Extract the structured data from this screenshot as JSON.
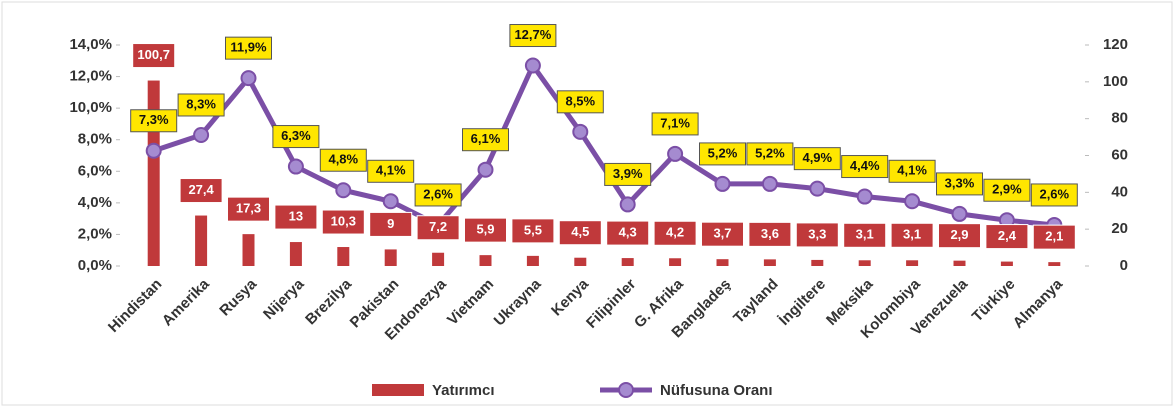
{
  "chart_data": {
    "type": "combo",
    "categories": [
      "Hindistan",
      "Amerika",
      "Rusya",
      "Nijerya",
      "Brezilya",
      "Pakistan",
      "Endonezya",
      "Vietnam",
      "Ukrayna",
      "Kenya",
      "Filipinler",
      "G. Afrika",
      "Bangladeş",
      "Tayland",
      "İngiltere",
      "Meksika",
      "Kolombiya",
      "Venezuela",
      "Türkiye",
      "Almanya"
    ],
    "series": [
      {
        "name": "Yatırımcı",
        "type": "bar",
        "axis": "y2",
        "color": "#c0393b",
        "values": [
          100.7,
          27.4,
          17.3,
          13,
          10.3,
          9,
          7.2,
          5.9,
          5.5,
          4.5,
          4.3,
          4.2,
          3.7,
          3.6,
          3.3,
          3.1,
          3.1,
          2.9,
          2.4,
          2.1
        ],
        "value_labels": [
          "100,7",
          "27,4",
          "17,3",
          "13",
          "10,3",
          "9",
          "7,2",
          "5,9",
          "5,5",
          "4,5",
          "4,3",
          "4,2",
          "3,7",
          "3,6",
          "3,3",
          "3,1",
          "3,1",
          "2,9",
          "2,4",
          "2,1"
        ]
      },
      {
        "name": "Nüfusuna Oranı",
        "type": "line",
        "axis": "y",
        "color": "#7b4fa6",
        "values": [
          7.3,
          8.3,
          11.9,
          6.3,
          4.8,
          4.1,
          2.6,
          6.1,
          12.7,
          8.5,
          3.9,
          7.1,
          5.2,
          5.2,
          4.9,
          4.4,
          4.1,
          3.3,
          2.9,
          2.6
        ],
        "value_labels": [
          "7,3%",
          "8,3%",
          "11,9%",
          "6,3%",
          "4,8%",
          "4,1%",
          "2,6%",
          "6,1%",
          "12,7%",
          "8,5%",
          "3,9%",
          "7,1%",
          "5,2%",
          "5,2%",
          "4,9%",
          "4,4%",
          "4,1%",
          "3,3%",
          "2,9%",
          "2,6%"
        ]
      }
    ],
    "ylim": [
      0,
      14
    ],
    "yticks": [
      {
        "value": 0,
        "label": "0,0%"
      },
      {
        "value": 2,
        "label": "2,0%"
      },
      {
        "value": 4,
        "label": "4,0%"
      },
      {
        "value": 6,
        "label": "6,0%"
      },
      {
        "value": 8,
        "label": "8,0%"
      },
      {
        "value": 10,
        "label": "10,0%"
      },
      {
        "value": 12,
        "label": "12,0%"
      },
      {
        "value": 14,
        "label": "14,0%"
      }
    ],
    "y2lim": [
      0,
      120
    ],
    "y2ticks": [
      0,
      20,
      40,
      60,
      80,
      100,
      120
    ],
    "legend": "bottom"
  }
}
